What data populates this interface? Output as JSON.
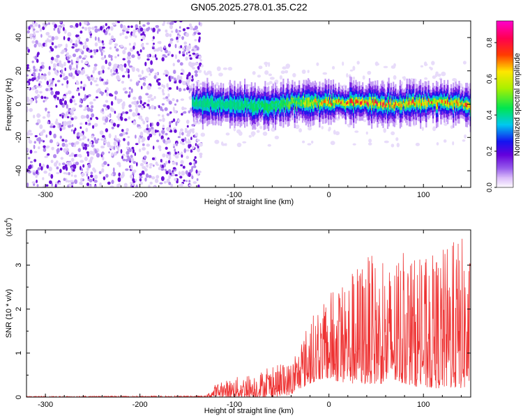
{
  "title": "GN05.2025.278.01.35.C22",
  "chart_data": [
    {
      "type": "heatmap",
      "panel": "spectrogram",
      "xlabel": "Height of straight line (km)",
      "ylabel": "Frequency (Hz)",
      "xlim": [
        -320,
        150
      ],
      "ylim": [
        -50,
        50
      ],
      "xticks": [
        -300,
        -200,
        -100,
        0,
        100
      ],
      "xtick_labels": [
        "-300",
        "-200",
        "-100",
        "0",
        "100"
      ],
      "yticks": [
        -40,
        -20,
        0,
        20,
        40
      ],
      "ytick_labels": [
        "-40",
        "-20",
        "0",
        "20",
        "40"
      ],
      "noise_region_x": [
        -320,
        -135
      ],
      "signal_track": {
        "description": "narrow-band signal centered near 0 Hz",
        "x_start": -145,
        "x_end": 150,
        "center_hz": [
          [
            -145,
            1
          ],
          [
            -120,
            0
          ],
          [
            -100,
            0
          ],
          [
            -80,
            -1
          ],
          [
            -60,
            -2
          ],
          [
            -40,
            1
          ],
          [
            -20,
            1
          ],
          [
            0,
            1
          ],
          [
            20,
            1
          ],
          [
            40,
            1
          ],
          [
            60,
            0
          ],
          [
            80,
            0
          ],
          [
            100,
            1
          ],
          [
            120,
            1
          ],
          [
            140,
            0
          ],
          [
            150,
            -1
          ]
        ],
        "half_width_hz": 5,
        "peak_amplitude": [
          [
            -145,
            0.45
          ],
          [
            -100,
            0.45
          ],
          [
            -50,
            0.5
          ],
          [
            0,
            0.85
          ],
          [
            50,
            0.9
          ],
          [
            100,
            0.85
          ],
          [
            150,
            0.8
          ]
        ]
      },
      "colorbar": {
        "label": "Normalized spectral amplitude",
        "range": [
          0,
          0.92
        ],
        "ticks": [
          0.0,
          0.2,
          0.4,
          0.6,
          0.8
        ],
        "tick_labels": [
          "0.0",
          "0.2",
          "0.4",
          "0.6",
          "0.8"
        ]
      }
    },
    {
      "type": "line",
      "panel": "snr",
      "xlabel": "Height of straight line (km)",
      "ylabel": "SNR (10 * v/v)",
      "scale_label": "(x10",
      "scale_exponent": "4",
      "scale_suffix": ")",
      "xlim": [
        -320,
        150
      ],
      "ylim": [
        0,
        3.8
      ],
      "xticks": [
        -300,
        -200,
        -100,
        0,
        100
      ],
      "xtick_labels": [
        "-300",
        "-200",
        "-100",
        "0",
        "100"
      ],
      "yticks": [
        0,
        1,
        2,
        3
      ],
      "ytick_labels": [
        "0",
        "1",
        "2",
        "3"
      ],
      "series": [
        {
          "name": "SNR",
          "color": "#ee3333",
          "envelope_x": [
            -320,
            -130,
            -120,
            -100,
            -80,
            -60,
            -40,
            -30,
            -20,
            -10,
            0,
            20,
            40,
            60,
            80,
            100,
            120,
            140,
            150
          ],
          "envelope_min": [
            0,
            0,
            0,
            0,
            0,
            0,
            0.05,
            0.2,
            0.3,
            0.4,
            0.4,
            0.3,
            0.3,
            0.3,
            0.3,
            0.2,
            0.2,
            0.2,
            0.2
          ],
          "envelope_max": [
            0.02,
            0.03,
            0.3,
            0.45,
            0.55,
            0.7,
            0.8,
            1.2,
            1.9,
            1.9,
            2.4,
            2.8,
            3.3,
            3.0,
            3.3,
            3.1,
            3.4,
            3.7,
            3.2
          ]
        }
      ]
    }
  ],
  "colors": {
    "axis": "#000000",
    "noise_light": "#e2d2f8",
    "noise_mid": "#b58ef0",
    "noise_dark": "#6a12d8",
    "snr_line": "#ee3333"
  }
}
